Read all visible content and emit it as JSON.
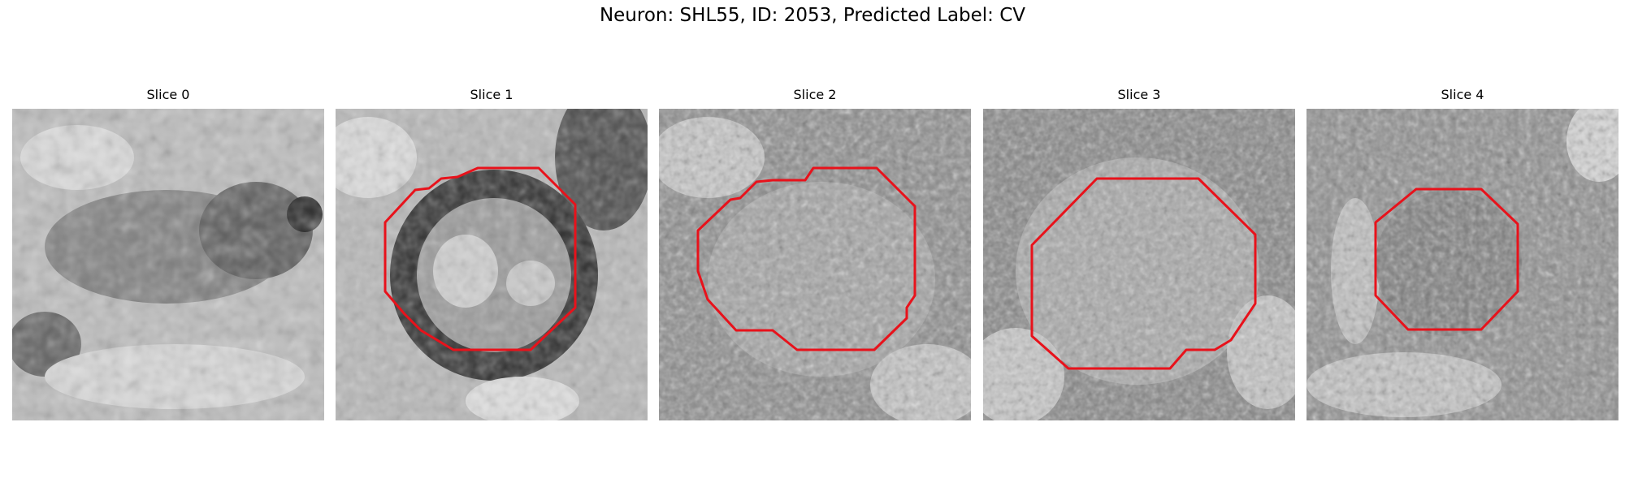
{
  "figure": {
    "title": "Neuron: SHL55, ID: 2053, Predicted Label: CV"
  },
  "panels": [
    {
      "label": "Slice 0",
      "has_outline": false
    },
    {
      "label": "Slice 1",
      "has_outline": true
    },
    {
      "label": "Slice 2",
      "has_outline": true
    },
    {
      "label": "Slice 3",
      "has_outline": true
    },
    {
      "label": "Slice 4",
      "has_outline": true
    }
  ],
  "colors": {
    "outline": "#e8121b",
    "background": "#ffffff"
  }
}
